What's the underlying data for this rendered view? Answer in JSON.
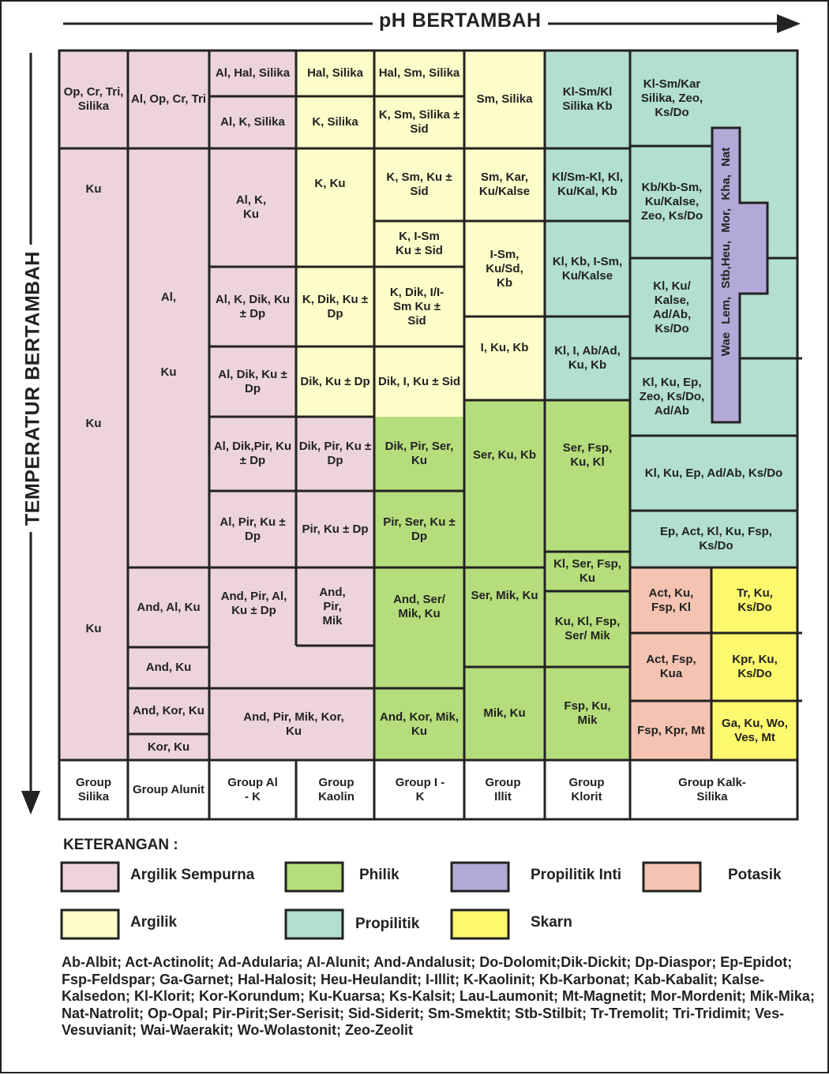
{
  "axis": {
    "x_title": "pH BERTAMBAH",
    "y_title": "TEMPERATUR BERTAMBAH"
  },
  "colors": {
    "argilik_sempurna": "#ecd3de",
    "argilik": "#fdfdc9",
    "philik": "#b5dd7b",
    "propilitik": "#b2dfce",
    "propilitik_inti": "#b3a9d8",
    "potasik": "#f4c3b1",
    "skarn": "#fdf86d",
    "line": "#222222"
  },
  "minerals": {
    "silika": [
      "Op, Cr, Tri, Silika",
      "Ku",
      "Ku",
      "Ku"
    ],
    "alunit": [
      "Al, Op, Cr, Tri",
      "Al,",
      "Ku",
      "And, Al, Ku",
      "And, Ku",
      "And, Kor, Ku",
      "Kor, Ku"
    ],
    "al_k": [
      "Al, Hal, Silika",
      "Al, K, Silika",
      "Al, K, Ku",
      "Al, K, Dik, Ku ± Dp",
      "Al, Dik, Ku ± Dp",
      "Al, Dik,Pir, Ku ± Dp",
      "Al, Pir, Ku ± Dp",
      "And, Pir, Al, Ku ± Dp",
      "And, Pir, Mik, Kor, Ku"
    ],
    "kaolin": [
      "Hal, Silika",
      "K, Silika",
      "K, Ku",
      "K, Dik, Ku ± Dp",
      "Dik, Ku ± Dp",
      "Dik, Pir, Ku ± Dp",
      "Pir, Ku ± Dp",
      "And, Pir, Mik"
    ],
    "i_k": [
      "Hal, Sm, Silika",
      "K, Sm, Silika ± Sid",
      "K, Sm, Ku ± Sid",
      "K, I-Sm Ku ± Sid",
      "K, Dik, I/I-Sm Ku ± Sid",
      "Dik, I, Ku ± Sid",
      "Dik, Pir, Ser, Ku",
      "Pir, Ser, Ku ± Dp",
      "And, Ser/ Mik, Ku",
      "And, Kor, Mik, Ku"
    ],
    "illit": [
      "Sm, Silika",
      "Sm, Kar, Ku/Kalse",
      "I-Sm, Ku/Sd, Kb",
      "I, Ku, Kb",
      "Ser, Ku, Kb",
      "Ser, Mik, Ku",
      "Mik, Ku"
    ],
    "klorit": [
      "Kl-Sm/Kl Silika Kb",
      "Kl/Sm-Kl, Kl, Ku/Kal, Kb",
      "Kl, Kb, I-Sm, Ku/Kalse",
      "Kl, I, Ab/Ad, Ku, Kb",
      "Ser, Fsp, Ku, Kl",
      "Kl, Ser, Fsp, Ku",
      "Ku, Kl, Fsp, Ser/ Mik",
      "Fsp, Ku, Mik"
    ],
    "kalk_silika": [
      "Kl-Sm/Kar Silika, Zeo, Ks/Do",
      "Kb/Kb-Sm, Ku/Kalse, Zeo, Ks/Do",
      "Kl, Ku/ Kalse, Ad/Ab, Ks/Do",
      "Kl, Ku, Ep, Zeo, Ks/Do, Ad/Ab",
      "Kl, Ku, Ep, Ad/Ab, Ks/Do",
      "Ep, Act, Kl, Ku, Fsp, Ks/Do",
      "Act, Ku, Fsp, Kl",
      "Tr, Ku, Ks/Do",
      "Act, Fsp, Kua",
      "Kpr, Ku, Ks/Do",
      "Fsp, Kpr, Mt",
      "Ga, Ku, Wo, Ves, Mt"
    ],
    "propilitik_inti_label": "Wae   Lem,  Stb,Heu, Mor, Kha, Nat"
  },
  "groups": [
    "Group Silika",
    "Group Alunit",
    "Group Al - K",
    "Group Kaolin",
    "Group I - K",
    "Group Illit",
    "Group Klorit",
    "Group Kalk-Silika"
  ],
  "legend": {
    "title": "KETERANGAN :",
    "items": [
      {
        "label": "Argilik Sempurna",
        "color": "#ecd3de"
      },
      {
        "label": "Philik",
        "color": "#b5dd7b"
      },
      {
        "label": "Propilitik Inti",
        "color": "#b3a9d8"
      },
      {
        "label": "Potasik",
        "color": "#f4c3b1"
      },
      {
        "label": "Argilik",
        "color": "#fdfdc9"
      },
      {
        "label": "Propilitik",
        "color": "#b2dfce"
      },
      {
        "label": "Skarn",
        "color": "#fdf86d"
      }
    ]
  },
  "abbreviations": "Ab-Albit; Act-Actinolit; Ad-Adularia; Al-Alunit; And-Andalusit; Do-Dolomit;Dik-Dickit; Dp-Diaspor; Ep-Epidot; Fsp-Feldspar; Ga-Garnet; Hal-Halosit; Heu-Heulandit; I-Illit; K-Kaolinit; Kb-Karbonat; Kab-Kabalit; Kalse-Kalsedon; Kl-Klorit; Kor-Korundum; Ku-Kuarsa; Ks-Kalsit; Lau-Laumonit; Mt-Magnetit; Mor-Mordenit; Mik-Mika; Nat-Natrolit; Op-Opal; Pir-Pirit;Ser-Serisit; Sid-Siderit; Sm-Smektit; Stb-Stilbit; Tr-Tremolit; Tri-Tridimit; Ves-Vesuvianit; Wai-Waerakit; Wo-Wolastonit; Zeo-Zeolit"
}
